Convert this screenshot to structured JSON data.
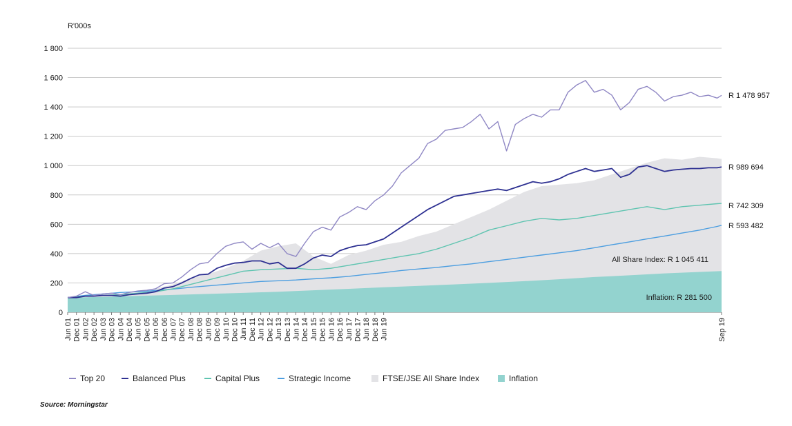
{
  "chart_data": {
    "type": "line",
    "ylabel": "R'000s",
    "ylim": [
      0,
      1800
    ],
    "yticks": [
      0,
      200,
      400,
      600,
      800,
      1000,
      1200,
      1400,
      1600,
      1800
    ],
    "ytick_labels": [
      "0",
      "200",
      "400",
      "600",
      "800",
      "1 000",
      "1 200",
      "1 400",
      "1 600",
      "1 800"
    ],
    "x_start": "Jun 01",
    "x_end": "Sep 19",
    "x_tick_labels": [
      "Jun 01",
      "Dec 01",
      "Jun 02",
      "Dec 02",
      "Jun 03",
      "Dec 03",
      "Jun 04",
      "Dec 04",
      "Jun 05",
      "Dec 05",
      "Jun 06",
      "Dec 06",
      "Jun 07",
      "Dec 07",
      "Jun 08",
      "Dec 08",
      "Jun 09",
      "Dec 09",
      "Jun 10",
      "Dec 10",
      "Jun 11",
      "Dec 11",
      "Jun 12",
      "Dec 12",
      "Jun 13",
      "Dec 13",
      "Jun 14",
      "Dec 14",
      "Jun 15",
      "Dec 15",
      "Jun 16",
      "Dec 16",
      "Jun 17",
      "Dec 17",
      "Jun 18",
      "Dec 18",
      "Jun 19",
      "Sep 19"
    ],
    "grid": "horizontal",
    "legend_position": "bottom",
    "series": [
      {
        "name": "Top 20",
        "kind": "line",
        "color": "#8f87c4",
        "end_label": "R 1 478 957",
        "x": [
          0,
          0.5,
          1,
          1.5,
          2,
          2.5,
          3,
          3.5,
          4,
          4.5,
          5,
          5.5,
          6,
          6.5,
          7,
          7.5,
          8,
          8.5,
          9,
          9.5,
          10,
          10.5,
          11,
          11.5,
          12,
          12.5,
          13,
          13.5,
          14,
          14.5,
          15,
          15.5,
          16,
          16.5,
          17,
          17.5,
          18,
          18.5,
          19,
          19.5,
          20,
          20.5,
          21,
          21.5,
          22,
          22.5,
          23,
          23.5,
          24,
          24.5,
          25,
          25.5,
          26,
          26.5,
          27,
          27.5,
          28,
          28.5,
          29,
          29.5,
          30,
          30.5,
          31,
          31.5,
          32,
          32.5,
          33,
          33.5,
          34,
          34.5,
          35,
          35.5,
          36,
          36.5,
          37,
          37.25
        ],
        "y": [
          100,
          110,
          140,
          115,
          125,
          130,
          120,
          135,
          145,
          150,
          160,
          195,
          200,
          240,
          290,
          330,
          340,
          400,
          450,
          470,
          480,
          430,
          470,
          440,
          470,
          400,
          380,
          470,
          550,
          580,
          560,
          650,
          680,
          720,
          700,
          760,
          800,
          860,
          950,
          1000,
          1050,
          1150,
          1180,
          1240,
          1250,
          1260,
          1300,
          1350,
          1250,
          1300,
          1100,
          1280,
          1320,
          1350,
          1330,
          1380,
          1380,
          1500,
          1550,
          1580,
          1500,
          1520,
          1480,
          1380,
          1430,
          1520,
          1540,
          1500,
          1440,
          1470,
          1480,
          1500,
          1470,
          1480,
          1460,
          1479
        ]
      },
      {
        "name": "Balanced Plus",
        "kind": "line",
        "color": "#2e3192",
        "end_label": "R 989 694",
        "x": [
          0,
          0.5,
          1,
          1.5,
          2,
          2.5,
          3,
          3.5,
          4,
          4.5,
          5,
          5.5,
          6,
          6.5,
          7,
          7.5,
          8,
          8.5,
          9,
          9.5,
          10,
          10.5,
          11,
          11.5,
          12,
          12.5,
          13,
          13.5,
          14,
          14.5,
          15,
          15.5,
          16,
          16.5,
          17,
          17.5,
          18,
          18.5,
          19,
          19.5,
          20,
          20.5,
          21,
          21.5,
          22,
          22.5,
          23,
          23.5,
          24,
          24.5,
          25,
          25.5,
          26,
          26.5,
          27,
          27.5,
          28,
          28.5,
          29,
          29.5,
          30,
          30.5,
          31,
          31.5,
          32,
          32.5,
          33,
          33.5,
          34,
          34.5,
          35,
          35.5,
          36,
          36.5,
          37,
          37.25
        ],
        "y": [
          100,
          100,
          110,
          110,
          115,
          115,
          110,
          120,
          125,
          130,
          140,
          165,
          175,
          200,
          230,
          255,
          260,
          300,
          320,
          335,
          340,
          350,
          350,
          330,
          340,
          300,
          300,
          330,
          370,
          390,
          380,
          420,
          440,
          455,
          460,
          480,
          500,
          540,
          580,
          620,
          660,
          700,
          730,
          760,
          790,
          800,
          810,
          820,
          830,
          840,
          830,
          850,
          870,
          890,
          880,
          890,
          910,
          940,
          960,
          980,
          960,
          970,
          980,
          920,
          940,
          990,
          1000,
          980,
          960,
          970,
          975,
          980,
          980,
          985,
          985,
          990
        ]
      },
      {
        "name": "Capital Plus",
        "kind": "line",
        "color": "#5ec4b0",
        "end_label": "R 742 309",
        "x": [
          0,
          1,
          2,
          3,
          4,
          5,
          6,
          7,
          8,
          9,
          10,
          11,
          12,
          13,
          14,
          15,
          16,
          17,
          18,
          19,
          20,
          21,
          22,
          23,
          24,
          25,
          26,
          27,
          28,
          29,
          30,
          31,
          32,
          33,
          34,
          35,
          36,
          37,
          37.25
        ],
        "y": [
          100,
          110,
          115,
          120,
          130,
          140,
          160,
          190,
          220,
          250,
          280,
          290,
          295,
          300,
          290,
          300,
          320,
          340,
          360,
          380,
          400,
          430,
          470,
          510,
          560,
          590,
          620,
          640,
          630,
          640,
          660,
          680,
          700,
          720,
          700,
          720,
          730,
          740,
          742
        ]
      },
      {
        "name": "Strategic Income",
        "kind": "line",
        "color": "#4c9ee0",
        "end_label": "R 593 482",
        "x": [
          0,
          1,
          2,
          3,
          4,
          5,
          6,
          7,
          8,
          9,
          10,
          11,
          12,
          13,
          14,
          15,
          16,
          17,
          18,
          19,
          20,
          21,
          22,
          23,
          24,
          25,
          26,
          27,
          28,
          29,
          30,
          31,
          32,
          33,
          34,
          35,
          36,
          37,
          37.25
        ],
        "y": [
          100,
          115,
          125,
          135,
          140,
          148,
          158,
          170,
          180,
          190,
          200,
          210,
          215,
          220,
          228,
          235,
          245,
          258,
          270,
          285,
          295,
          305,
          318,
          330,
          345,
          360,
          375,
          390,
          405,
          420,
          440,
          460,
          480,
          500,
          520,
          540,
          560,
          585,
          593
        ]
      },
      {
        "name": "FTSE/JSE All Share Index",
        "kind": "area",
        "color": "#e3e3e6",
        "inline_label": "All Share Index: R 1 045 411",
        "x": [
          0,
          1,
          2,
          3,
          4,
          5,
          6,
          7,
          8,
          9,
          10,
          11,
          12,
          13,
          14,
          15,
          16,
          17,
          18,
          19,
          20,
          21,
          22,
          23,
          24,
          25,
          26,
          27,
          28,
          29,
          30,
          31,
          32,
          33,
          34,
          35,
          36,
          37,
          37.25
        ],
        "y": [
          100,
          110,
          115,
          125,
          135,
          160,
          190,
          230,
          260,
          300,
          350,
          420,
          450,
          470,
          380,
          330,
          390,
          420,
          460,
          480,
          520,
          550,
          600,
          650,
          700,
          760,
          820,
          860,
          870,
          880,
          900,
          940,
          980,
          1020,
          1050,
          1040,
          1060,
          1050,
          1045
        ]
      },
      {
        "name": "Inflation",
        "kind": "area",
        "color": "#93d3cf",
        "inline_label": "Inflation: R 281 500",
        "x": [
          0,
          2,
          4,
          6,
          8,
          10,
          12,
          14,
          16,
          18,
          20,
          22,
          24,
          26,
          28,
          30,
          32,
          34,
          36,
          37.25
        ],
        "y": [
          100,
          105,
          112,
          118,
          125,
          132,
          140,
          150,
          160,
          170,
          180,
          190,
          200,
          212,
          225,
          240,
          252,
          265,
          275,
          281
        ]
      }
    ],
    "source": "Source: Morningstar"
  }
}
